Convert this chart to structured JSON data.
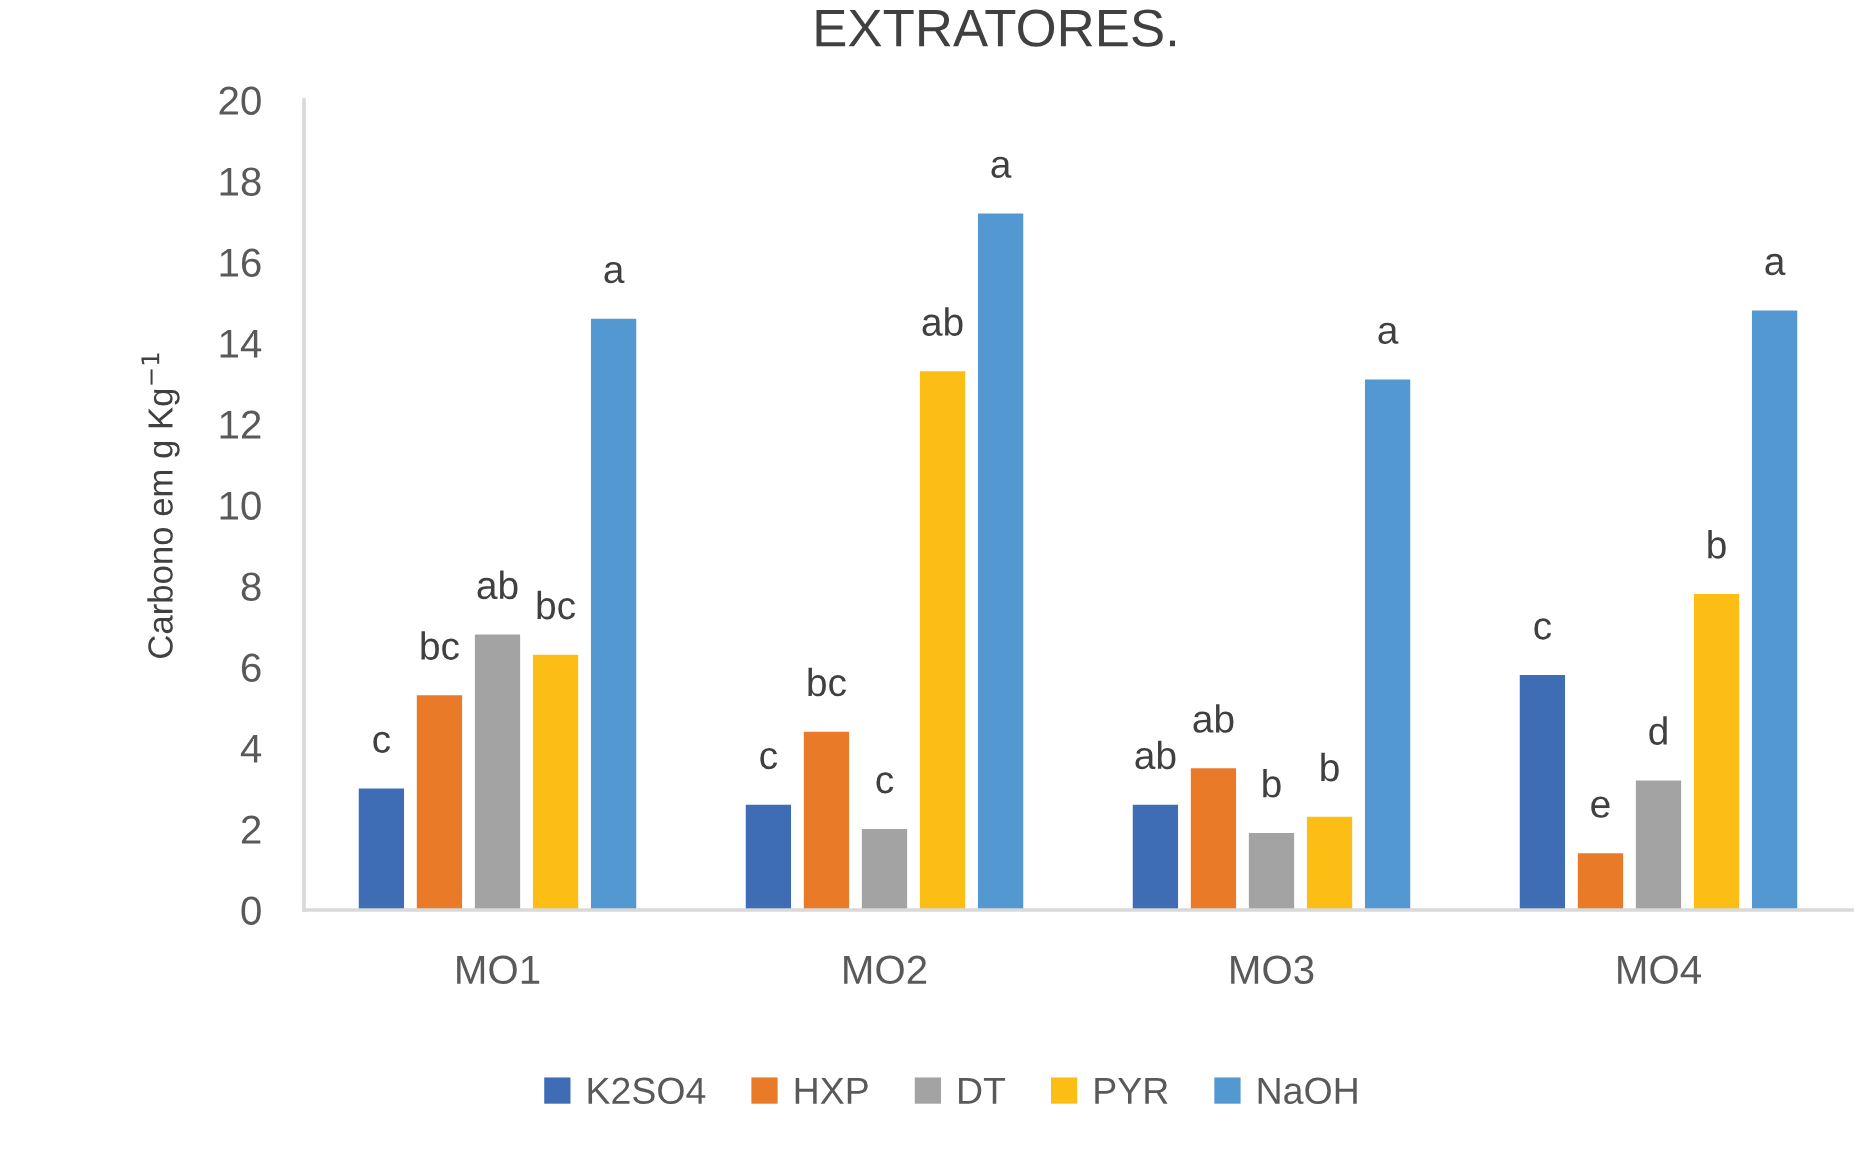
{
  "chart_data": {
    "type": "bar",
    "title": "EXTRATORES.",
    "ylabel": "Carbono em g Kg$^{−1}$",
    "categories": [
      "MO1",
      "MO2",
      "MO3",
      "MO4"
    ],
    "series": [
      {
        "name": "K2SO4",
        "color": "#3e6db5",
        "values": [
          3.0,
          2.6,
          2.6,
          5.8
        ],
        "value_labels": [
          "c",
          "c",
          "ab",
          "c"
        ]
      },
      {
        "name": "HXP",
        "color": "#e97a27",
        "values": [
          5.3,
          4.4,
          3.5,
          1.4
        ],
        "value_labels": [
          "bc",
          "bc",
          "ab",
          "e"
        ]
      },
      {
        "name": "DT",
        "color": "#a3a3a3",
        "values": [
          6.8,
          2.0,
          1.9,
          3.2
        ],
        "value_labels": [
          "ab",
          "c",
          "b",
          "d"
        ]
      },
      {
        "name": "PYR",
        "color": "#fcbe14",
        "values": [
          6.3,
          13.3,
          2.3,
          7.8
        ],
        "value_labels": [
          "bc",
          "ab",
          "b",
          "b"
        ]
      },
      {
        "name": "NaOH",
        "color": "#5498d2",
        "values": [
          14.6,
          17.2,
          13.1,
          14.8
        ],
        "value_labels": [
          "a",
          "a",
          "a",
          "a"
        ]
      }
    ],
    "ylim": [
      0,
      20
    ],
    "yticks": [
      0,
      2,
      4,
      6,
      8,
      10,
      12,
      14,
      16,
      18,
      20
    ],
    "legend": "bottom"
  }
}
